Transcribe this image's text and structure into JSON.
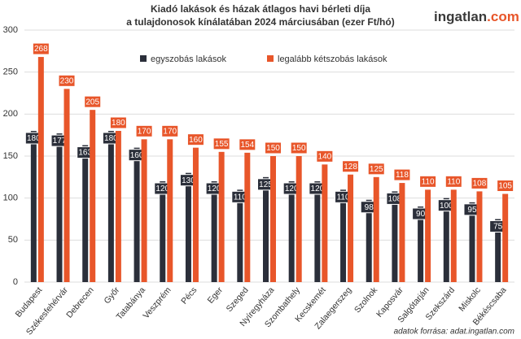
{
  "chart_data": {
    "type": "bar",
    "title": "Kiadó lakások és házak átlagos havi bérleti díja",
    "subtitle": "a tulajdonosok kínálatában 2024 márciusában (ezer Ft/hó)",
    "logo": [
      "ingatlan",
      ".com"
    ],
    "source": "adatok forrása: adat.ingatlan.com",
    "categories": [
      "Budapest",
      "Székesfehérvár",
      "Debrecen",
      "Győr",
      "Tatabánya",
      "Veszprém",
      "Pécs",
      "Eger",
      "Szeged",
      "Nyíregyháza",
      "Szombathely",
      "Kecskemét",
      "Zalaegerszeg",
      "Szolnok",
      "Kaposvár",
      "Salgótarján",
      "Szekszárd",
      "Miskolc",
      "Békéscsaba"
    ],
    "series": [
      {
        "name": "egyszobás lakások",
        "color": "#2b2f3a",
        "values": [
          180,
          177,
          163,
          180,
          160,
          120,
          130,
          120,
          110,
          125,
          120,
          120,
          110,
          98,
          108,
          90,
          100,
          95,
          75
        ]
      },
      {
        "name": "legalább kétszobás lakások",
        "color": "#e8562a",
        "values": [
          268,
          230,
          205,
          180,
          170,
          170,
          160,
          155,
          154,
          150,
          150,
          140,
          128,
          125,
          118,
          110,
          110,
          108,
          105
        ]
      }
    ],
    "ylim": [
      0,
      300
    ],
    "yticks": [
      0,
      50,
      100,
      150,
      200,
      250,
      300
    ],
    "grid": true
  }
}
